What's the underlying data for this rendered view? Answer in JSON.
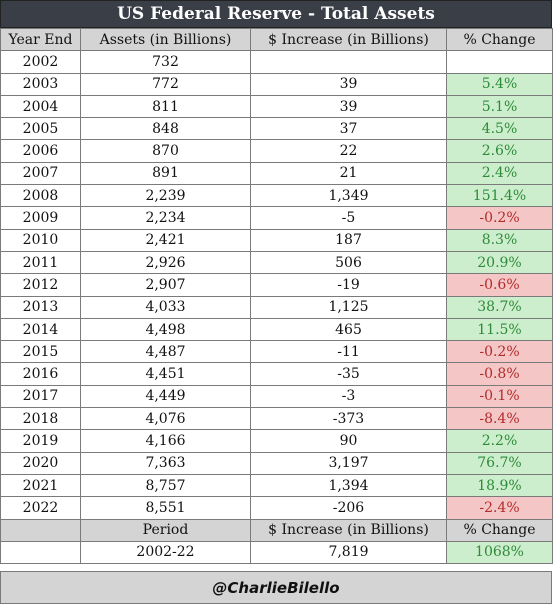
{
  "chart_data": {
    "type": "table",
    "title": "US Federal Reserve - Total Assets",
    "columns": [
      "Year End",
      "Assets (in Billions)",
      "$ Increase (in Billions)",
      "% Change"
    ],
    "rows": [
      {
        "year": "2002",
        "assets": "732",
        "increase": "",
        "pct": ""
      },
      {
        "year": "2003",
        "assets": "772",
        "increase": "39",
        "pct": "5.4%"
      },
      {
        "year": "2004",
        "assets": "811",
        "increase": "39",
        "pct": "5.1%"
      },
      {
        "year": "2005",
        "assets": "848",
        "increase": "37",
        "pct": "4.5%"
      },
      {
        "year": "2006",
        "assets": "870",
        "increase": "22",
        "pct": "2.6%"
      },
      {
        "year": "2007",
        "assets": "891",
        "increase": "21",
        "pct": "2.4%"
      },
      {
        "year": "2008",
        "assets": "2,239",
        "increase": "1,349",
        "pct": "151.4%"
      },
      {
        "year": "2009",
        "assets": "2,234",
        "increase": "-5",
        "pct": "-0.2%"
      },
      {
        "year": "2010",
        "assets": "2,421",
        "increase": "187",
        "pct": "8.3%"
      },
      {
        "year": "2011",
        "assets": "2,926",
        "increase": "506",
        "pct": "20.9%"
      },
      {
        "year": "2012",
        "assets": "2,907",
        "increase": "-19",
        "pct": "-0.6%"
      },
      {
        "year": "2013",
        "assets": "4,033",
        "increase": "1,125",
        "pct": "38.7%"
      },
      {
        "year": "2014",
        "assets": "4,498",
        "increase": "465",
        "pct": "11.5%"
      },
      {
        "year": "2015",
        "assets": "4,487",
        "increase": "-11",
        "pct": "-0.2%"
      },
      {
        "year": "2016",
        "assets": "4,451",
        "increase": "-35",
        "pct": "-0.8%"
      },
      {
        "year": "2017",
        "assets": "4,449",
        "increase": "-3",
        "pct": "-0.1%"
      },
      {
        "year": "2018",
        "assets": "4,076",
        "increase": "-373",
        "pct": "-8.4%"
      },
      {
        "year": "2019",
        "assets": "4,166",
        "increase": "90",
        "pct": "2.2%"
      },
      {
        "year": "2020",
        "assets": "7,363",
        "increase": "3,197",
        "pct": "76.7%"
      },
      {
        "year": "2021",
        "assets": "8,757",
        "increase": "1,394",
        "pct": "18.9%"
      },
      {
        "year": "2022",
        "assets": "8,551",
        "increase": "-206",
        "pct": "-2.4%"
      }
    ],
    "summary_headers": [
      "Period",
      "$ Increase (in Billions)",
      "% Change"
    ],
    "summary": {
      "period": "2002-22",
      "increase": "7,819",
      "pct": "1068%"
    },
    "colors": {
      "positive_bg": "#cdeecd",
      "positive_text": "#2e8b3a",
      "negative_bg": "#f4c6c6",
      "negative_text": "#b22b2b",
      "header_bg": "#d4d4d4",
      "title_bg": "#3a3f47"
    }
  },
  "footer": {
    "credit": "@CharlieBilello"
  }
}
